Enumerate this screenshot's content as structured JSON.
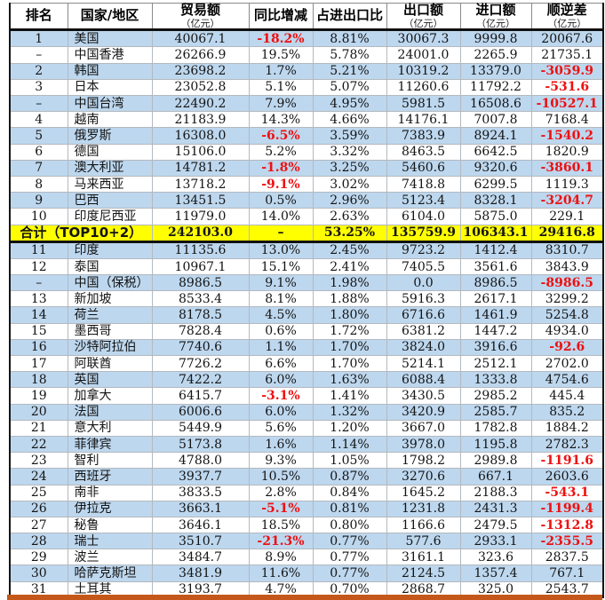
{
  "table": {
    "columns": [
      {
        "label": "排名",
        "unit": ""
      },
      {
        "label": "国家/地区",
        "unit": ""
      },
      {
        "label": "贸易额",
        "unit": "（亿元）"
      },
      {
        "label": "同比增减",
        "unit": ""
      },
      {
        "label": "占进出口比",
        "unit": ""
      },
      {
        "label": "出口额",
        "unit": "（亿元）"
      },
      {
        "label": "进口额",
        "unit": "（亿元）"
      },
      {
        "label": "顺逆差",
        "unit": "（亿元）"
      }
    ],
    "rows": [
      {
        "rank": "1",
        "country": "美国",
        "trade": "40067.1",
        "yoy": "-18.2%",
        "share": "8.81%",
        "exp": "30067.3",
        "imp": "9999.8",
        "bal": "20067.6",
        "bg": "blue"
      },
      {
        "rank": "–",
        "country": "中国香港",
        "trade": "26266.9",
        "yoy": "19.5%",
        "share": "5.78%",
        "exp": "24001.0",
        "imp": "2265.9",
        "bal": "21735.1",
        "bg": "white"
      },
      {
        "rank": "2",
        "country": "韩国",
        "trade": "23698.2",
        "yoy": "1.7%",
        "share": "5.21%",
        "exp": "10319.2",
        "imp": "13379.0",
        "bal": "-3059.9",
        "bg": "blue"
      },
      {
        "rank": "3",
        "country": "日本",
        "trade": "23052.8",
        "yoy": "5.1%",
        "share": "5.07%",
        "exp": "11260.6",
        "imp": "11792.2",
        "bal": "-531.6",
        "bg": "white"
      },
      {
        "rank": "–",
        "country": "中国台湾",
        "trade": "22490.2",
        "yoy": "7.9%",
        "share": "4.95%",
        "exp": "5981.5",
        "imp": "16508.6",
        "bal": "-10527.1",
        "bg": "blue"
      },
      {
        "rank": "4",
        "country": "越南",
        "trade": "21183.9",
        "yoy": "14.3%",
        "share": "4.66%",
        "exp": "14176.1",
        "imp": "7007.8",
        "bal": "7168.4",
        "bg": "white"
      },
      {
        "rank": "5",
        "country": "俄罗斯",
        "trade": "16308.0",
        "yoy": "-6.5%",
        "share": "3.59%",
        "exp": "7383.9",
        "imp": "8924.1",
        "bal": "-1540.2",
        "bg": "blue"
      },
      {
        "rank": "6",
        "country": "德国",
        "trade": "15106.0",
        "yoy": "5.2%",
        "share": "3.32%",
        "exp": "8463.5",
        "imp": "6642.5",
        "bal": "1820.9",
        "bg": "white"
      },
      {
        "rank": "7",
        "country": "澳大利亚",
        "trade": "14781.2",
        "yoy": "-1.8%",
        "share": "3.25%",
        "exp": "5460.6",
        "imp": "9320.6",
        "bal": "-3860.1",
        "bg": "blue"
      },
      {
        "rank": "8",
        "country": "马来西亚",
        "trade": "13718.2",
        "yoy": "-9.1%",
        "share": "3.02%",
        "exp": "7418.8",
        "imp": "6299.5",
        "bal": "1119.3",
        "bg": "white"
      },
      {
        "rank": "9",
        "country": "巴西",
        "trade": "13451.5",
        "yoy": "0.5%",
        "share": "2.96%",
        "exp": "5123.4",
        "imp": "8328.1",
        "bal": "-3204.7",
        "bg": "blue"
      },
      {
        "rank": "10",
        "country": "印度尼西亚",
        "trade": "11979.0",
        "yoy": "14.0%",
        "share": "2.63%",
        "exp": "6104.0",
        "imp": "5875.0",
        "bal": "229.1",
        "bg": "white"
      },
      {
        "merged": true,
        "label": "合计（TOP10+2）",
        "trade": "242103.0",
        "yoy": "–",
        "share": "53.25%",
        "exp": "135759.9",
        "imp": "106343.1",
        "bal": "29416.8",
        "bg": "yellow"
      },
      {
        "rank": "11",
        "country": "印度",
        "trade": "11135.6",
        "yoy": "13.0%",
        "share": "2.45%",
        "exp": "9723.2",
        "imp": "1412.4",
        "bal": "8310.7",
        "bg": "blue"
      },
      {
        "rank": "12",
        "country": "泰国",
        "trade": "10967.1",
        "yoy": "15.1%",
        "share": "2.41%",
        "exp": "7405.5",
        "imp": "3561.6",
        "bal": "3843.9",
        "bg": "white"
      },
      {
        "rank": "–",
        "country": "中国（保税）",
        "trade": "8986.5",
        "yoy": "9.1%",
        "share": "1.98%",
        "exp": "0.0",
        "imp": "8986.5",
        "bal": "-8986.5",
        "bg": "blue"
      },
      {
        "rank": "13",
        "country": "新加坡",
        "trade": "8533.4",
        "yoy": "8.1%",
        "share": "1.88%",
        "exp": "5916.3",
        "imp": "2617.1",
        "bal": "3299.2",
        "bg": "white"
      },
      {
        "rank": "14",
        "country": "荷兰",
        "trade": "8178.5",
        "yoy": "4.5%",
        "share": "1.80%",
        "exp": "6716.6",
        "imp": "1461.9",
        "bal": "5254.8",
        "bg": "blue"
      },
      {
        "rank": "15",
        "country": "墨西哥",
        "trade": "7828.4",
        "yoy": "0.6%",
        "share": "1.72%",
        "exp": "6381.2",
        "imp": "1447.2",
        "bal": "4934.0",
        "bg": "white"
      },
      {
        "rank": "16",
        "country": "沙特阿拉伯",
        "trade": "7740.6",
        "yoy": "1.1%",
        "share": "1.70%",
        "exp": "3824.0",
        "imp": "3916.6",
        "bal": "-92.6",
        "bg": "blue"
      },
      {
        "rank": "17",
        "country": "阿联酋",
        "trade": "7726.2",
        "yoy": "6.6%",
        "share": "1.70%",
        "exp": "5214.1",
        "imp": "2512.1",
        "bal": "2702.0",
        "bg": "white"
      },
      {
        "rank": "18",
        "country": "英国",
        "trade": "7422.2",
        "yoy": "6.0%",
        "share": "1.63%",
        "exp": "6088.4",
        "imp": "1333.8",
        "bal": "4754.6",
        "bg": "blue"
      },
      {
        "rank": "19",
        "country": "加拿大",
        "trade": "6415.7",
        "yoy": "-3.1%",
        "share": "1.41%",
        "exp": "3430.5",
        "imp": "2985.2",
        "bal": "445.4",
        "bg": "white"
      },
      {
        "rank": "20",
        "country": "法国",
        "trade": "6006.6",
        "yoy": "6.0%",
        "share": "1.32%",
        "exp": "3420.9",
        "imp": "2585.7",
        "bal": "835.2",
        "bg": "blue"
      },
      {
        "rank": "21",
        "country": "意大利",
        "trade": "5449.9",
        "yoy": "5.6%",
        "share": "1.20%",
        "exp": "3667.0",
        "imp": "1782.8",
        "bal": "1884.2",
        "bg": "white"
      },
      {
        "rank": "22",
        "country": "菲律宾",
        "trade": "5173.8",
        "yoy": "1.6%",
        "share": "1.14%",
        "exp": "3978.0",
        "imp": "1195.8",
        "bal": "2782.3",
        "bg": "blue"
      },
      {
        "rank": "23",
        "country": "智利",
        "trade": "4788.0",
        "yoy": "9.3%",
        "share": "1.05%",
        "exp": "1798.2",
        "imp": "2989.8",
        "bal": "-1191.6",
        "bg": "white"
      },
      {
        "rank": "24",
        "country": "西班牙",
        "trade": "3937.7",
        "yoy": "10.5%",
        "share": "0.87%",
        "exp": "3270.6",
        "imp": "667.1",
        "bal": "2603.6",
        "bg": "blue"
      },
      {
        "rank": "25",
        "country": "南非",
        "trade": "3833.5",
        "yoy": "2.8%",
        "share": "0.84%",
        "exp": "1645.2",
        "imp": "2188.3",
        "bal": "-543.1",
        "bg": "white"
      },
      {
        "rank": "26",
        "country": "伊拉克",
        "trade": "3663.1",
        "yoy": "-5.1%",
        "share": "0.81%",
        "exp": "1231.8",
        "imp": "2431.3",
        "bal": "-1199.4",
        "bg": "blue"
      },
      {
        "rank": "27",
        "country": "秘鲁",
        "trade": "3646.1",
        "yoy": "18.5%",
        "share": "0.80%",
        "exp": "1166.6",
        "imp": "2479.5",
        "bal": "-1312.8",
        "bg": "white"
      },
      {
        "rank": "28",
        "country": "瑞士",
        "trade": "3510.7",
        "yoy": "-21.3%",
        "share": "0.77%",
        "exp": "577.6",
        "imp": "2933.1",
        "bal": "-2355.5",
        "bg": "blue"
      },
      {
        "rank": "29",
        "country": "波兰",
        "trade": "3484.7",
        "yoy": "8.9%",
        "share": "0.77%",
        "exp": "3161.1",
        "imp": "323.6",
        "bal": "2837.5",
        "bg": "white"
      },
      {
        "rank": "30",
        "country": "哈萨克斯坦",
        "trade": "3481.9",
        "yoy": "11.6%",
        "share": "0.77%",
        "exp": "2124.5",
        "imp": "1357.4",
        "bal": "767.1",
        "bg": "blue"
      },
      {
        "rank": "31",
        "country": "土耳其",
        "trade": "3193.7",
        "yoy": "4.7%",
        "share": "0.70%",
        "exp": "2868.7",
        "imp": "325.0",
        "bal": "2543.7",
        "bg": "white"
      }
    ]
  },
  "colors": {
    "row_highlight_blue": "#BDD7EE",
    "total_row_yellow": "#FFFF00",
    "negative_red": "#EE1010",
    "bottom_bar_orange": "#C4581A",
    "border_dark": "#101010"
  }
}
